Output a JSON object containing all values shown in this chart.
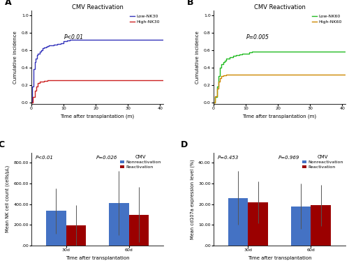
{
  "panel_A": {
    "title": "CMV Reactivation",
    "xlabel": "Time after transplantation (m)",
    "ylabel": "Cumulative incidence",
    "pvalue": "P<0.01",
    "xlim": [
      0,
      41
    ],
    "ylim": [
      -0.02,
      1.05
    ],
    "xticks": [
      0,
      10,
      20,
      30,
      40
    ],
    "yticks": [
      0.0,
      0.2,
      0.4,
      0.6,
      0.8,
      1.0
    ],
    "low_x": [
      0,
      0.3,
      0.7,
      1.0,
      1.3,
      1.7,
      2.0,
      2.5,
      3.0,
      3.5,
      4.0,
      4.5,
      5.0,
      5.5,
      6.0,
      7.0,
      8.0,
      9.0,
      10.0,
      11.0,
      12.0,
      41.0
    ],
    "low_y": [
      0,
      0.18,
      0.38,
      0.46,
      0.5,
      0.54,
      0.56,
      0.58,
      0.6,
      0.62,
      0.63,
      0.64,
      0.645,
      0.65,
      0.655,
      0.66,
      0.67,
      0.68,
      0.7,
      0.71,
      0.72,
      0.72
    ],
    "high_x": [
      0,
      0.5,
      1.0,
      1.5,
      2.0,
      2.5,
      3.0,
      4.0,
      5.0,
      41.0
    ],
    "high_y": [
      0,
      0.06,
      0.13,
      0.18,
      0.22,
      0.235,
      0.24,
      0.245,
      0.25,
      0.25
    ],
    "low_color": "#3333bb",
    "high_color": "#cc2222",
    "low_label": "Low-NK30",
    "high_label": "High-NK30"
  },
  "panel_B": {
    "title": "CMV Reactivation",
    "xlabel": "Time after transplantation (m)",
    "ylabel": "Cumulative incidence",
    "pvalue": "P=0.005",
    "xlim": [
      0,
      41
    ],
    "ylim": [
      -0.02,
      1.05
    ],
    "xticks": [
      0,
      10,
      20,
      30,
      40
    ],
    "yticks": [
      0.0,
      0.2,
      0.4,
      0.6,
      0.8,
      1.0
    ],
    "low_x": [
      0,
      0.5,
      1.0,
      1.5,
      2.0,
      2.5,
      3.0,
      3.5,
      4.0,
      5.0,
      6.0,
      7.0,
      8.0,
      9.0,
      10.0,
      11.0,
      12.0,
      41.0
    ],
    "low_y": [
      0,
      0.06,
      0.18,
      0.3,
      0.4,
      0.44,
      0.46,
      0.48,
      0.5,
      0.52,
      0.535,
      0.545,
      0.55,
      0.555,
      0.56,
      0.57,
      0.58,
      0.58
    ],
    "high_x": [
      0,
      0.5,
      1.0,
      1.5,
      2.0,
      2.5,
      3.0,
      4.0,
      5.0,
      41.0
    ],
    "high_y": [
      0,
      0.07,
      0.16,
      0.24,
      0.28,
      0.3,
      0.31,
      0.315,
      0.32,
      0.32
    ],
    "low_color": "#22bb22",
    "high_color": "#cc8800",
    "low_label": "Low-NK60",
    "high_label": "High-NK60"
  },
  "panel_C": {
    "xlabel": "Time after transplantation",
    "ylabel": "Mean NK cell count (cells/μL)",
    "pvalue1": "P<0.01",
    "pvalue2": "P=0.026",
    "categories": [
      "30d",
      "60d"
    ],
    "nonreact_means": [
      335,
      415
    ],
    "nonreact_errors": [
      220,
      310
    ],
    "react_means": [
      195,
      300
    ],
    "react_errors": [
      195,
      265
    ],
    "ylim": [
      0,
      900
    ],
    "yticks": [
      0,
      200,
      400,
      600,
      800
    ],
    "yticklabels": [
      ".00",
      "200.00",
      "400.00",
      "600.00",
      "800.00"
    ],
    "bar_width": 0.32,
    "nonreact_color": "#4472c4",
    "react_color": "#9b0000",
    "legend_title": "CMV",
    "nonreact_label": "Nonreactivation",
    "react_label": "Reactivation"
  },
  "panel_D": {
    "xlabel": "Time after transplantation",
    "ylabel": "Mean cd107a expression level (%)",
    "pvalue1": "P=0.453",
    "pvalue2": "P=0.969",
    "categories": [
      "30d",
      "60d"
    ],
    "nonreact_means": [
      23,
      19
    ],
    "nonreact_errors": [
      13,
      11
    ],
    "react_means": [
      21,
      19.5
    ],
    "react_errors": [
      10,
      10
    ],
    "ylim": [
      0,
      45
    ],
    "yticks": [
      0,
      10,
      20,
      30,
      40
    ],
    "yticklabels": [
      ".00",
      "10.00",
      "20.00",
      "30.00",
      "40.00"
    ],
    "bar_width": 0.32,
    "nonreact_color": "#4472c4",
    "react_color": "#9b0000",
    "legend_title": "CMV",
    "nonreact_label": "Nonreactivation",
    "react_label": "Reactivation"
  }
}
